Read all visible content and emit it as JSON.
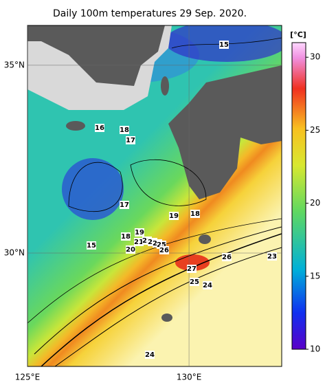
{
  "title": "Daily 100m temperatures 29 Sep. 2020.",
  "map": {
    "lonlim": [
      125,
      132.87
    ],
    "latlim": [
      26.98,
      36.06
    ],
    "lon_ticks": [
      {
        "value": 125,
        "label": "125°E"
      },
      {
        "value": 130,
        "label": "130°E"
      }
    ],
    "lat_ticks": [
      {
        "value": 35,
        "label": "35°N"
      },
      {
        "value": 30,
        "label": "30°N"
      }
    ],
    "contour_labels": [
      15,
      16,
      18,
      17,
      17,
      19,
      18,
      19,
      18,
      21,
      22,
      23,
      24,
      25,
      26,
      20,
      15,
      26,
      23,
      27,
      25,
      24,
      24
    ]
  },
  "colorbar": {
    "unit": "[°C]",
    "lim": [
      10,
      31
    ],
    "ticks": [
      10,
      15,
      20,
      25,
      30
    ]
  }
}
